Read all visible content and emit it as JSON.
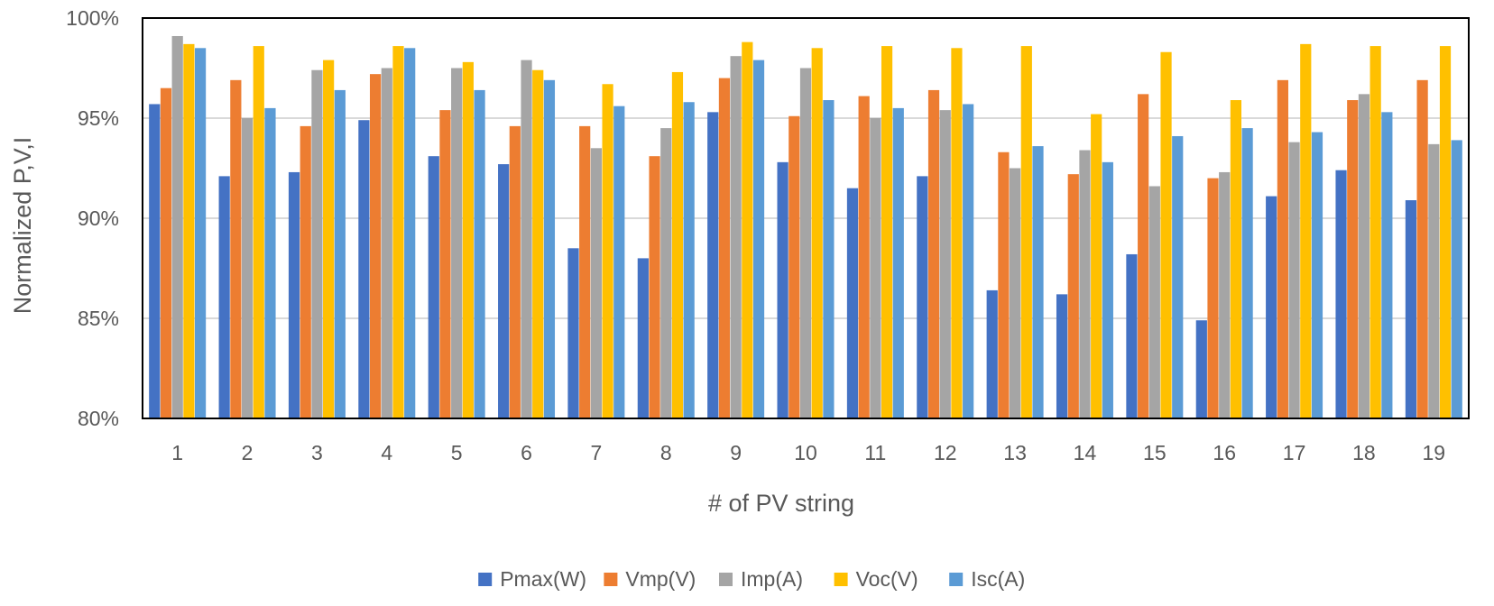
{
  "chart_data": {
    "type": "bar",
    "title": "",
    "xlabel": "# of PV string",
    "ylabel": "Normalized P,V,I",
    "ylim": [
      80,
      100
    ],
    "y_ticks": [
      80,
      85,
      90,
      95,
      100
    ],
    "y_tick_labels": [
      "80%",
      "85%",
      "90%",
      "95%",
      "100%"
    ],
    "grid": true,
    "legend_position": "bottom",
    "categories": [
      "1",
      "2",
      "3",
      "4",
      "5",
      "6",
      "7",
      "8",
      "9",
      "10",
      "11",
      "12",
      "13",
      "14",
      "15",
      "16",
      "17",
      "18",
      "19"
    ],
    "series": [
      {
        "name": "Pmax(W)",
        "color": "#4472C4",
        "values": [
          95.7,
          92.1,
          92.3,
          94.9,
          93.1,
          92.7,
          88.5,
          88.0,
          95.3,
          92.8,
          91.5,
          92.1,
          86.4,
          86.2,
          88.2,
          84.9,
          91.1,
          92.4,
          90.9
        ]
      },
      {
        "name": "Vmp(V)",
        "color": "#ED7D31",
        "values": [
          96.5,
          96.9,
          94.6,
          97.2,
          95.4,
          94.6,
          94.6,
          93.1,
          97.0,
          95.1,
          96.1,
          96.4,
          93.3,
          92.2,
          96.2,
          92.0,
          96.9,
          95.9,
          96.9
        ]
      },
      {
        "name": "Imp(A)",
        "color": "#A5A5A5",
        "values": [
          99.1,
          95.0,
          97.4,
          97.5,
          97.5,
          97.9,
          93.5,
          94.5,
          98.1,
          97.5,
          95.0,
          95.4,
          92.5,
          93.4,
          91.6,
          92.3,
          93.8,
          96.2,
          93.7
        ]
      },
      {
        "name": "Voc(V)",
        "color": "#FFC000",
        "values": [
          98.7,
          98.6,
          97.9,
          98.6,
          97.8,
          97.4,
          96.7,
          97.3,
          98.8,
          98.5,
          98.6,
          98.5,
          98.6,
          95.2,
          98.3,
          95.9,
          98.7,
          98.6,
          98.6
        ]
      },
      {
        "name": "Isc(A)",
        "color": "#5B9BD5",
        "values": [
          98.5,
          95.5,
          96.4,
          98.5,
          96.4,
          96.9,
          95.6,
          95.8,
          97.9,
          95.9,
          95.5,
          95.7,
          93.6,
          92.8,
          94.1,
          94.5,
          94.3,
          95.3,
          93.9
        ]
      }
    ]
  }
}
